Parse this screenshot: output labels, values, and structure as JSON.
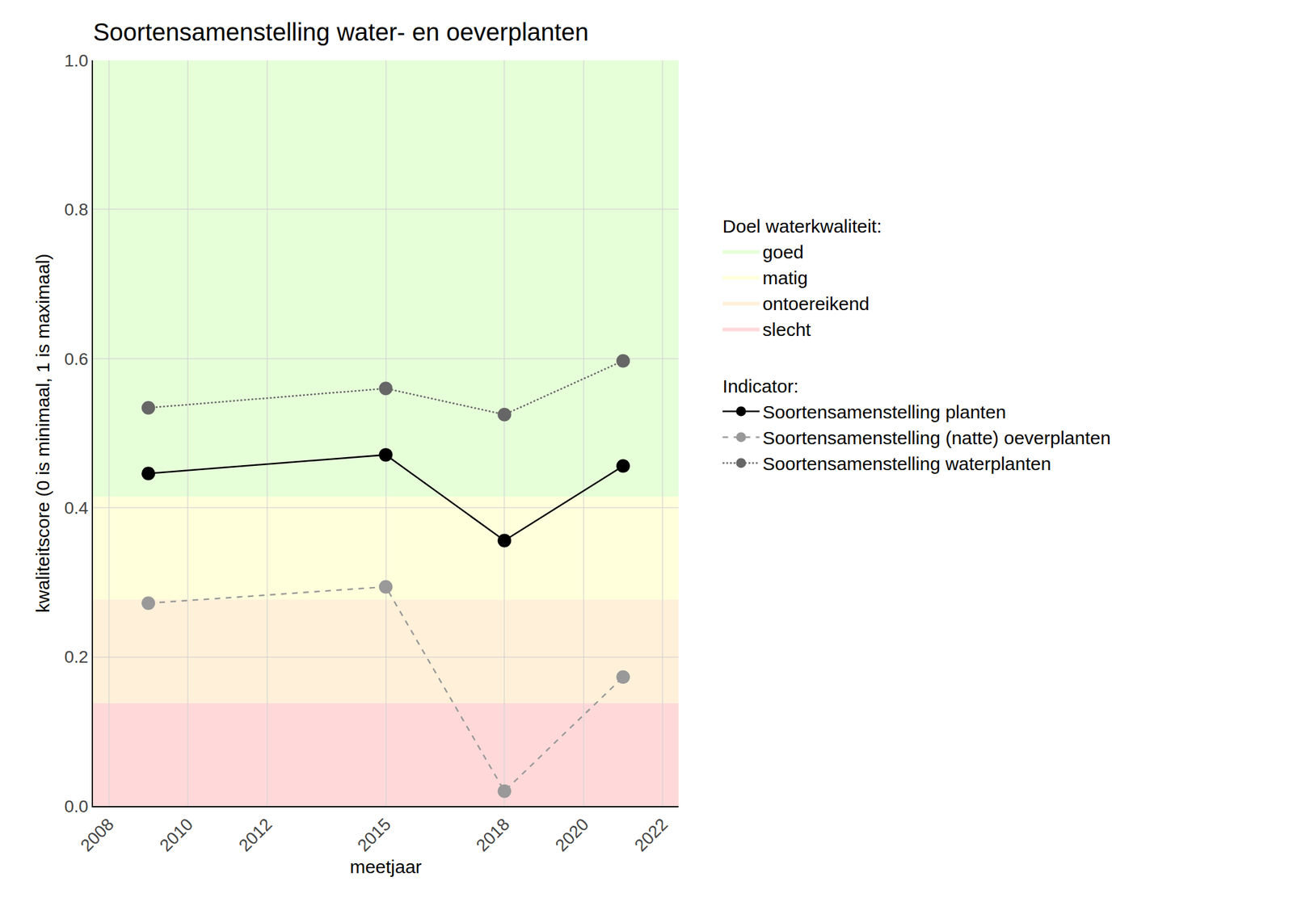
{
  "chart_data": {
    "type": "line",
    "title": "Soortensamenstelling water- en oeverplanten",
    "x_label": "meetjaar",
    "y_label": "kwaliteitscore (0 is minimaal, 1 is maximaal)",
    "x": [
      2009,
      2015,
      2018,
      2021
    ],
    "series": [
      {
        "name": "Soortensamenstelling planten",
        "color": "#000000",
        "line_style": "solid",
        "marker": "circle",
        "values": [
          0.446,
          0.471,
          0.356,
          0.456
        ]
      },
      {
        "name": "Soortensamenstelling (natte) oeverplanten",
        "color": "#999999",
        "line_style": "dash",
        "marker": "circle",
        "values": [
          0.272,
          0.294,
          0.02,
          0.173
        ]
      },
      {
        "name": "Soortensamenstelling waterplanten",
        "color": "#666666",
        "line_style": "dot",
        "marker": "circle",
        "values": [
          0.534,
          0.56,
          0.525,
          0.597
        ]
      }
    ],
    "bands_title": "Doel waterkwaliteit:",
    "series_title": "Indicator:",
    "bands": [
      {
        "name": "goed",
        "color": "#e6ffd9",
        "from": 0.415,
        "to": 1.0
      },
      {
        "name": "matig",
        "color": "#ffffdc",
        "from": 0.277,
        "to": 0.415
      },
      {
        "name": "ontoereikend",
        "color": "#fff0d9",
        "from": 0.138,
        "to": 0.277
      },
      {
        "name": "slecht",
        "color": "#ffd9d9",
        "from": 0.0,
        "to": 0.138
      }
    ],
    "xlim": [
      2007.6,
      2022.4
    ],
    "xticks": [
      2008,
      2010,
      2012,
      2015,
      2018,
      2020,
      2022
    ],
    "ylim": [
      0,
      1
    ],
    "yticks": [
      {
        "value": 0,
        "label": "0.0"
      },
      0.2,
      0.4,
      0.6,
      0.8,
      {
        "value": 1,
        "label": "1.0"
      }
    ],
    "grid": true,
    "legend": "right"
  }
}
